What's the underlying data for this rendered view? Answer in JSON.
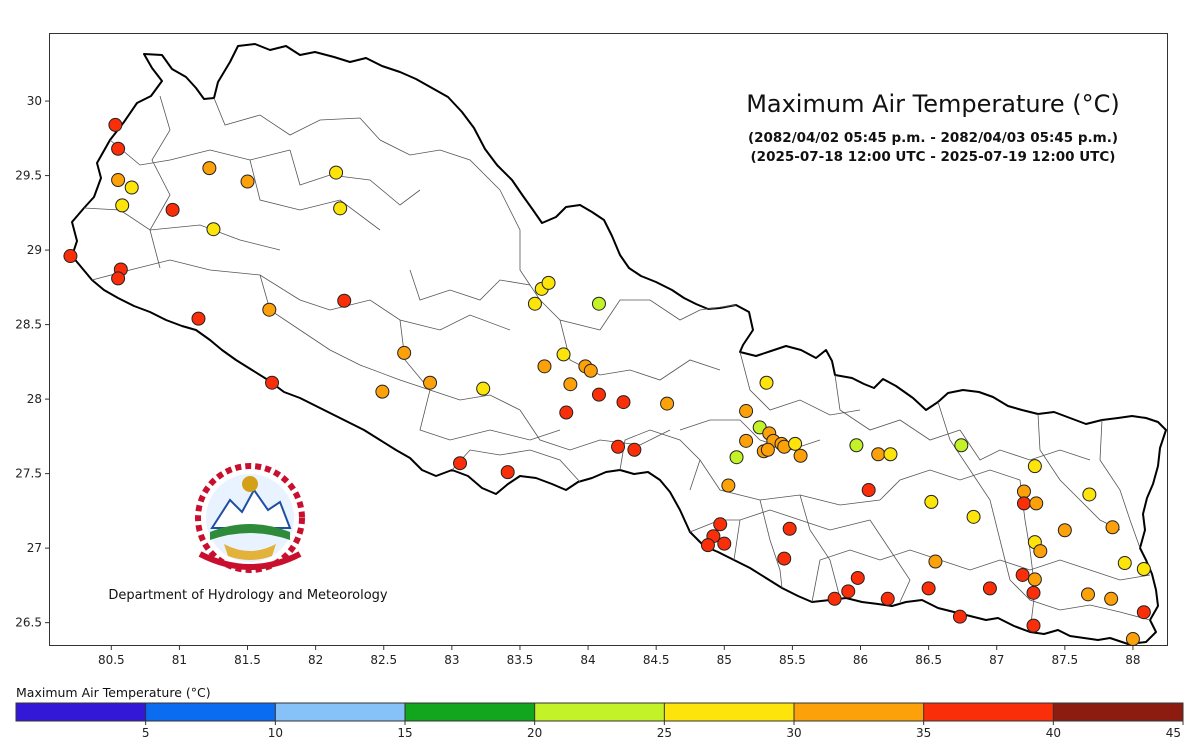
{
  "title": "Maximum Air Temperature (°C)",
  "subtitle_nepali": "(2082/04/02 05:45 p.m. - 2082/04/03 05:45 p.m.)",
  "subtitle_utc": "(2025-07-18 12:00 UTC - 2025-07-19 12:00 UTC)",
  "organization": "Department of Hydrology and Meteorology",
  "logo_name": "Government of Nepal emblem",
  "axes": {
    "x_ticks": [
      80.5,
      81,
      81.5,
      82,
      82.5,
      83,
      83.5,
      84,
      84.5,
      85,
      85.5,
      86,
      86.5,
      87,
      87.5,
      88
    ],
    "y_ticks": [
      26.5,
      27,
      27.5,
      28,
      28.5,
      29,
      29.5,
      30
    ],
    "xlim": [
      80.05,
      88.25
    ],
    "ylim": [
      26.35,
      30.45
    ]
  },
  "legend": {
    "title": "Maximum Air Temperature (°C)",
    "bins": [
      {
        "from": 0,
        "to": 5,
        "color": "#3318d8"
      },
      {
        "from": 5,
        "to": 10,
        "color": "#0a6cf0"
      },
      {
        "from": 10,
        "to": 15,
        "color": "#86c2f7"
      },
      {
        "from": 15,
        "to": 20,
        "color": "#12a51e"
      },
      {
        "from": 20,
        "to": 25,
        "color": "#c2f227"
      },
      {
        "from": 25,
        "to": 30,
        "color": "#fde40a"
      },
      {
        "from": 30,
        "to": 35,
        "color": "#fca10a"
      },
      {
        "from": 35,
        "to": 40,
        "color": "#fb2e0a"
      },
      {
        "from": 40,
        "to": 45,
        "color": "#8c1c10"
      }
    ],
    "tick_labels": [
      "5",
      "10",
      "15",
      "20",
      "25",
      "30",
      "35",
      "40",
      "45"
    ]
  },
  "chart_data": {
    "type": "scatter",
    "description_units": "longitude (°E), latitude (°N), max temperature class color",
    "stations": [
      {
        "lon": 80.53,
        "lat": 29.84,
        "color": "#fb2e0a"
      },
      {
        "lon": 80.55,
        "lat": 29.68,
        "color": "#fb2e0a"
      },
      {
        "lon": 80.55,
        "lat": 29.47,
        "color": "#fca10a"
      },
      {
        "lon": 80.65,
        "lat": 29.42,
        "color": "#fde40a"
      },
      {
        "lon": 80.58,
        "lat": 29.3,
        "color": "#fde40a"
      },
      {
        "lon": 80.95,
        "lat": 29.27,
        "color": "#fb2e0a"
      },
      {
        "lon": 81.22,
        "lat": 29.55,
        "color": "#fca10a"
      },
      {
        "lon": 81.5,
        "lat": 29.46,
        "color": "#fca10a"
      },
      {
        "lon": 81.25,
        "lat": 29.14,
        "color": "#fde40a"
      },
      {
        "lon": 82.15,
        "lat": 29.52,
        "color": "#fde40a"
      },
      {
        "lon": 82.18,
        "lat": 29.28,
        "color": "#fde40a"
      },
      {
        "lon": 80.2,
        "lat": 28.96,
        "color": "#fb2e0a"
      },
      {
        "lon": 80.57,
        "lat": 28.87,
        "color": "#fb2e0a"
      },
      {
        "lon": 80.55,
        "lat": 28.81,
        "color": "#fb2e0a"
      },
      {
        "lon": 81.14,
        "lat": 28.54,
        "color": "#fb2e0a"
      },
      {
        "lon": 81.66,
        "lat": 28.6,
        "color": "#fca10a"
      },
      {
        "lon": 82.21,
        "lat": 28.66,
        "color": "#fb2e0a"
      },
      {
        "lon": 81.68,
        "lat": 28.11,
        "color": "#fb2e0a"
      },
      {
        "lon": 82.49,
        "lat": 28.05,
        "color": "#fca10a"
      },
      {
        "lon": 82.65,
        "lat": 28.31,
        "color": "#fca10a"
      },
      {
        "lon": 82.84,
        "lat": 28.11,
        "color": "#fca10a"
      },
      {
        "lon": 83.23,
        "lat": 28.07,
        "color": "#fde40a"
      },
      {
        "lon": 83.06,
        "lat": 27.57,
        "color": "#fb2e0a"
      },
      {
        "lon": 83.41,
        "lat": 27.51,
        "color": "#fb2e0a"
      },
      {
        "lon": 83.66,
        "lat": 28.74,
        "color": "#fde40a"
      },
      {
        "lon": 83.71,
        "lat": 28.78,
        "color": "#fde40a"
      },
      {
        "lon": 83.61,
        "lat": 28.64,
        "color": "#fde40a"
      },
      {
        "lon": 84.08,
        "lat": 28.64,
        "color": "#c2f227"
      },
      {
        "lon": 83.82,
        "lat": 28.3,
        "color": "#fde40a"
      },
      {
        "lon": 83.68,
        "lat": 28.22,
        "color": "#fca10a"
      },
      {
        "lon": 83.98,
        "lat": 28.22,
        "color": "#fca10a"
      },
      {
        "lon": 84.02,
        "lat": 28.19,
        "color": "#fca10a"
      },
      {
        "lon": 83.87,
        "lat": 28.1,
        "color": "#fca10a"
      },
      {
        "lon": 84.08,
        "lat": 28.03,
        "color": "#fb2e0a"
      },
      {
        "lon": 84.26,
        "lat": 27.98,
        "color": "#fb2e0a"
      },
      {
        "lon": 83.84,
        "lat": 27.91,
        "color": "#fb2e0a"
      },
      {
        "lon": 84.22,
        "lat": 27.68,
        "color": "#fb2e0a"
      },
      {
        "lon": 84.34,
        "lat": 27.66,
        "color": "#fb2e0a"
      },
      {
        "lon": 84.58,
        "lat": 27.97,
        "color": "#fca10a"
      },
      {
        "lon": 85.31,
        "lat": 28.11,
        "color": "#fde40a"
      },
      {
        "lon": 85.16,
        "lat": 27.92,
        "color": "#fca10a"
      },
      {
        "lon": 85.26,
        "lat": 27.81,
        "color": "#c2f227"
      },
      {
        "lon": 85.33,
        "lat": 27.77,
        "color": "#fca10a"
      },
      {
        "lon": 85.16,
        "lat": 27.72,
        "color": "#fca10a"
      },
      {
        "lon": 85.36,
        "lat": 27.72,
        "color": "#fca10a"
      },
      {
        "lon": 85.42,
        "lat": 27.7,
        "color": "#fca10a"
      },
      {
        "lon": 85.29,
        "lat": 27.65,
        "color": "#fca10a"
      },
      {
        "lon": 85.32,
        "lat": 27.66,
        "color": "#fca10a"
      },
      {
        "lon": 85.44,
        "lat": 27.68,
        "color": "#fca10a"
      },
      {
        "lon": 85.52,
        "lat": 27.7,
        "color": "#fde40a"
      },
      {
        "lon": 85.56,
        "lat": 27.62,
        "color": "#fca10a"
      },
      {
        "lon": 85.09,
        "lat": 27.61,
        "color": "#c2f227"
      },
      {
        "lon": 85.97,
        "lat": 27.69,
        "color": "#c2f227"
      },
      {
        "lon": 86.13,
        "lat": 27.63,
        "color": "#fca10a"
      },
      {
        "lon": 86.22,
        "lat": 27.63,
        "color": "#fde40a"
      },
      {
        "lon": 86.74,
        "lat": 27.69,
        "color": "#c2f227"
      },
      {
        "lon": 85.03,
        "lat": 27.42,
        "color": "#fca10a"
      },
      {
        "lon": 86.06,
        "lat": 27.39,
        "color": "#fb2e0a"
      },
      {
        "lon": 86.52,
        "lat": 27.31,
        "color": "#fde40a"
      },
      {
        "lon": 86.83,
        "lat": 27.21,
        "color": "#fde40a"
      },
      {
        "lon": 84.97,
        "lat": 27.16,
        "color": "#fb2e0a"
      },
      {
        "lon": 84.92,
        "lat": 27.08,
        "color": "#fb2e0a"
      },
      {
        "lon": 84.88,
        "lat": 27.02,
        "color": "#fb2e0a"
      },
      {
        "lon": 85.0,
        "lat": 27.03,
        "color": "#fb2e0a"
      },
      {
        "lon": 85.48,
        "lat": 27.13,
        "color": "#fb2e0a"
      },
      {
        "lon": 85.44,
        "lat": 26.93,
        "color": "#fb2e0a"
      },
      {
        "lon": 85.81,
        "lat": 26.66,
        "color": "#fb2e0a"
      },
      {
        "lon": 85.91,
        "lat": 26.71,
        "color": "#fb2e0a"
      },
      {
        "lon": 85.98,
        "lat": 26.8,
        "color": "#fb2e0a"
      },
      {
        "lon": 86.2,
        "lat": 26.66,
        "color": "#fb2e0a"
      },
      {
        "lon": 86.55,
        "lat": 26.91,
        "color": "#fca10a"
      },
      {
        "lon": 86.5,
        "lat": 26.73,
        "color": "#fb2e0a"
      },
      {
        "lon": 86.73,
        "lat": 26.54,
        "color": "#fb2e0a"
      },
      {
        "lon": 86.95,
        "lat": 26.73,
        "color": "#fb2e0a"
      },
      {
        "lon": 87.19,
        "lat": 26.82,
        "color": "#fb2e0a"
      },
      {
        "lon": 87.28,
        "lat": 26.79,
        "color": "#fca10a"
      },
      {
        "lon": 87.27,
        "lat": 26.7,
        "color": "#fb2e0a"
      },
      {
        "lon": 87.27,
        "lat": 26.48,
        "color": "#fb2e0a"
      },
      {
        "lon": 87.2,
        "lat": 27.38,
        "color": "#fca10a"
      },
      {
        "lon": 87.2,
        "lat": 27.3,
        "color": "#fb2e0a"
      },
      {
        "lon": 87.29,
        "lat": 27.3,
        "color": "#fca10a"
      },
      {
        "lon": 87.28,
        "lat": 27.55,
        "color": "#fde40a"
      },
      {
        "lon": 87.28,
        "lat": 27.04,
        "color": "#fde40a"
      },
      {
        "lon": 87.32,
        "lat": 26.98,
        "color": "#fca10a"
      },
      {
        "lon": 87.5,
        "lat": 27.12,
        "color": "#fca10a"
      },
      {
        "lon": 87.68,
        "lat": 27.36,
        "color": "#fde40a"
      },
      {
        "lon": 87.85,
        "lat": 27.14,
        "color": "#fca10a"
      },
      {
        "lon": 87.67,
        "lat": 26.69,
        "color": "#fca10a"
      },
      {
        "lon": 87.84,
        "lat": 26.66,
        "color": "#fca10a"
      },
      {
        "lon": 87.94,
        "lat": 26.9,
        "color": "#fde40a"
      },
      {
        "lon": 88.08,
        "lat": 26.86,
        "color": "#fde40a"
      },
      {
        "lon": 88.08,
        "lat": 26.57,
        "color": "#fb2e0a"
      },
      {
        "lon": 88.0,
        "lat": 26.39,
        "color": "#fca10a"
      }
    ]
  }
}
